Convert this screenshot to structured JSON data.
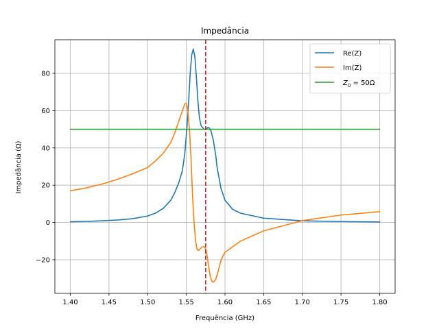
{
  "chart_data": {
    "type": "line",
    "title": "Impedância",
    "xlabel": "Frequência (GHz)",
    "ylabel": "Impedância (Ω)",
    "xlim": [
      1.38,
      1.82
    ],
    "ylim": [
      -38,
      98
    ],
    "xticks": [
      1.4,
      1.45,
      1.5,
      1.55,
      1.6,
      1.65,
      1.7,
      1.75,
      1.8
    ],
    "xtick_labels": [
      "1.40",
      "1.45",
      "1.50",
      "1.55",
      "1.60",
      "1.65",
      "1.70",
      "1.75",
      "1.80"
    ],
    "yticks": [
      -20,
      0,
      20,
      40,
      60,
      80
    ],
    "ytick_labels": [
      "−20",
      "0",
      "20",
      "40",
      "60",
      "80"
    ],
    "grid": true,
    "legend_position": "top-right",
    "series": [
      {
        "name": "Re(Z)",
        "color": "#1f77b4",
        "x": [
          1.4,
          1.42,
          1.44,
          1.46,
          1.48,
          1.5,
          1.51,
          1.52,
          1.53,
          1.535,
          1.54,
          1.545,
          1.548,
          1.551,
          1.553,
          1.555,
          1.557,
          1.559,
          1.561,
          1.563,
          1.565,
          1.567,
          1.569,
          1.571,
          1.573,
          1.575,
          1.578,
          1.58,
          1.582,
          1.585,
          1.588,
          1.59,
          1.595,
          1.6,
          1.61,
          1.62,
          1.65,
          1.7,
          1.75,
          1.8
        ],
        "y": [
          0.4,
          0.6,
          0.9,
          1.3,
          2.0,
          3.5,
          5.0,
          7.5,
          12,
          16,
          21,
          28,
          37,
          52,
          65,
          80,
          90,
          93,
          89,
          78,
          65,
          56,
          52,
          51,
          50,
          50,
          51,
          50.5,
          49,
          44,
          36,
          29,
          18,
          12,
          7,
          5,
          2.3,
          0.9,
          0.5,
          0.3
        ]
      },
      {
        "name": "Im(Z)",
        "color": "#ff7f0e",
        "x": [
          1.4,
          1.42,
          1.44,
          1.46,
          1.48,
          1.5,
          1.51,
          1.52,
          1.53,
          1.535,
          1.54,
          1.545,
          1.548,
          1.55,
          1.552,
          1.554,
          1.556,
          1.558,
          1.56,
          1.562,
          1.564,
          1.566,
          1.568,
          1.571,
          1.573,
          1.575,
          1.577,
          1.579,
          1.581,
          1.583,
          1.585,
          1.588,
          1.59,
          1.595,
          1.6,
          1.62,
          1.65,
          1.7,
          1.75,
          1.8
        ],
        "y": [
          17,
          18.5,
          20.5,
          23,
          26,
          29.5,
          33,
          37,
          43,
          48,
          54,
          60,
          63.5,
          64,
          60,
          50,
          35,
          15,
          0,
          -10,
          -14.5,
          -15,
          -14,
          -13,
          -13,
          -14,
          -18,
          -24,
          -29,
          -31.5,
          -32,
          -30.5,
          -28,
          -20,
          -16,
          -10,
          -4.5,
          1,
          4,
          5.8
        ]
      },
      {
        "name": "$Z_0 = 50\\Omega$",
        "color": "#2ca02c",
        "x": [
          1.4,
          1.8
        ],
        "y": [
          50,
          50
        ]
      }
    ],
    "vertical_lines": [
      {
        "x": 1.575,
        "color": "#d62728",
        "style": "dashed"
      }
    ]
  },
  "legend": {
    "entries": [
      {
        "label": "Re(Z)",
        "color": "#1f77b4"
      },
      {
        "label": "Im(Z)",
        "color": "#ff7f0e"
      },
      {
        "label_main": "Z",
        "label_sub": "0",
        "label_rest": " = 50Ω",
        "color": "#2ca02c"
      }
    ]
  }
}
